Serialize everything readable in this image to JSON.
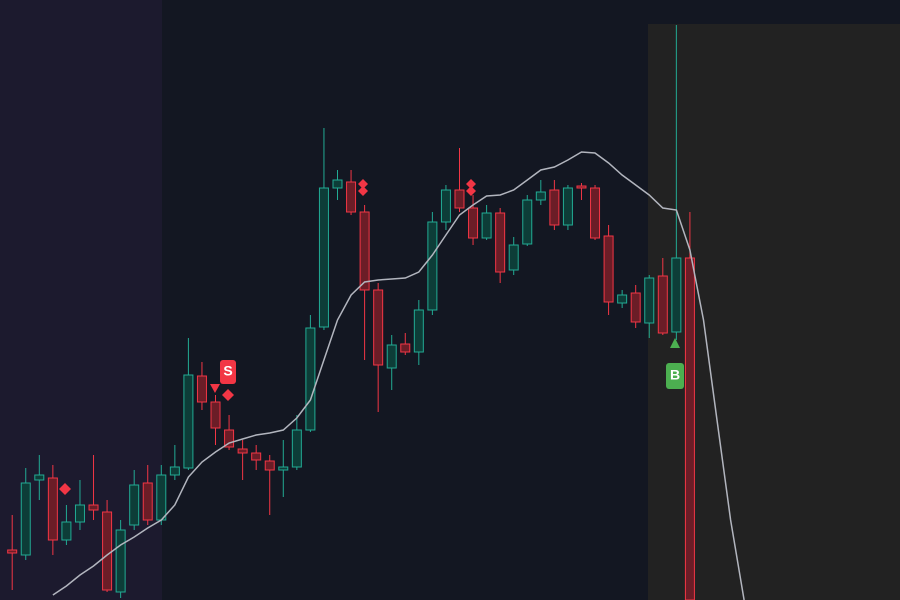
{
  "chart_data": {
    "type": "candlestick",
    "xlim": [
      -0.9,
      65.5
    ],
    "ylim": [
      0,
      600
    ],
    "up_color": "#22ab94",
    "up_fill": "#0d3d38",
    "down_color": "#f23645",
    "down_fill": "#6b1d27",
    "candles": {
      "open": [
        50,
        45,
        120,
        122,
        60,
        78,
        95,
        88,
        8,
        75,
        117,
        80,
        125,
        132,
        224,
        198,
        170,
        151,
        147,
        139,
        130,
        133,
        170,
        273,
        412,
        418,
        388,
        310,
        232,
        256,
        248,
        290,
        378,
        410,
        392,
        362,
        387,
        330,
        356,
        400,
        410,
        375,
        414,
        412,
        364,
        297,
        307,
        277,
        324,
        268,
        342
      ],
      "high": [
        85,
        132,
        145,
        135,
        95,
        120,
        145,
        100,
        80,
        130,
        135,
        135,
        155,
        262,
        238,
        205,
        185,
        160,
        155,
        145,
        160,
        185,
        285,
        472,
        430,
        430,
        395,
        317,
        265,
        267,
        300,
        388,
        415,
        452,
        405,
        395,
        392,
        363,
        405,
        420,
        420,
        415,
        417,
        415,
        375,
        310,
        315,
        325,
        342,
        575,
        388
      ],
      "low": [
        10,
        40,
        100,
        45,
        55,
        70,
        80,
        8,
        2,
        70,
        75,
        75,
        120,
        130,
        190,
        155,
        150,
        120,
        130,
        85,
        103,
        130,
        168,
        270,
        400,
        385,
        240,
        188,
        210,
        245,
        235,
        285,
        370,
        388,
        355,
        360,
        317,
        325,
        354,
        395,
        370,
        370,
        400,
        360,
        285,
        292,
        272,
        262,
        265,
        260,
        0
      ],
      "close": [
        47,
        117,
        125,
        60,
        78,
        95,
        90,
        10,
        70,
        115,
        80,
        125,
        133,
        225,
        198,
        172,
        153,
        147,
        140,
        130,
        133,
        170,
        272,
        412,
        420,
        388,
        310,
        235,
        255,
        248,
        290,
        378,
        410,
        392,
        362,
        387,
        328,
        355,
        400,
        408,
        375,
        412,
        412,
        362,
        298,
        305,
        278,
        322,
        267,
        342,
        0
      ]
    },
    "line": {
      "color": "#b2b5be",
      "values": [
        null,
        null,
        null,
        5,
        14,
        25,
        34,
        45,
        55,
        63,
        72,
        80,
        95,
        123,
        138,
        148,
        157,
        161,
        165,
        167,
        170,
        182,
        200,
        240,
        280,
        305,
        318,
        320,
        321,
        322,
        328,
        345,
        365,
        385,
        395,
        404,
        405,
        410,
        420,
        430,
        433,
        440,
        448,
        447,
        437,
        425,
        415,
        405,
        392,
        390,
        350,
        280,
        180,
        80,
        0
      ]
    },
    "sell_label": "S",
    "buy_label": "B"
  }
}
